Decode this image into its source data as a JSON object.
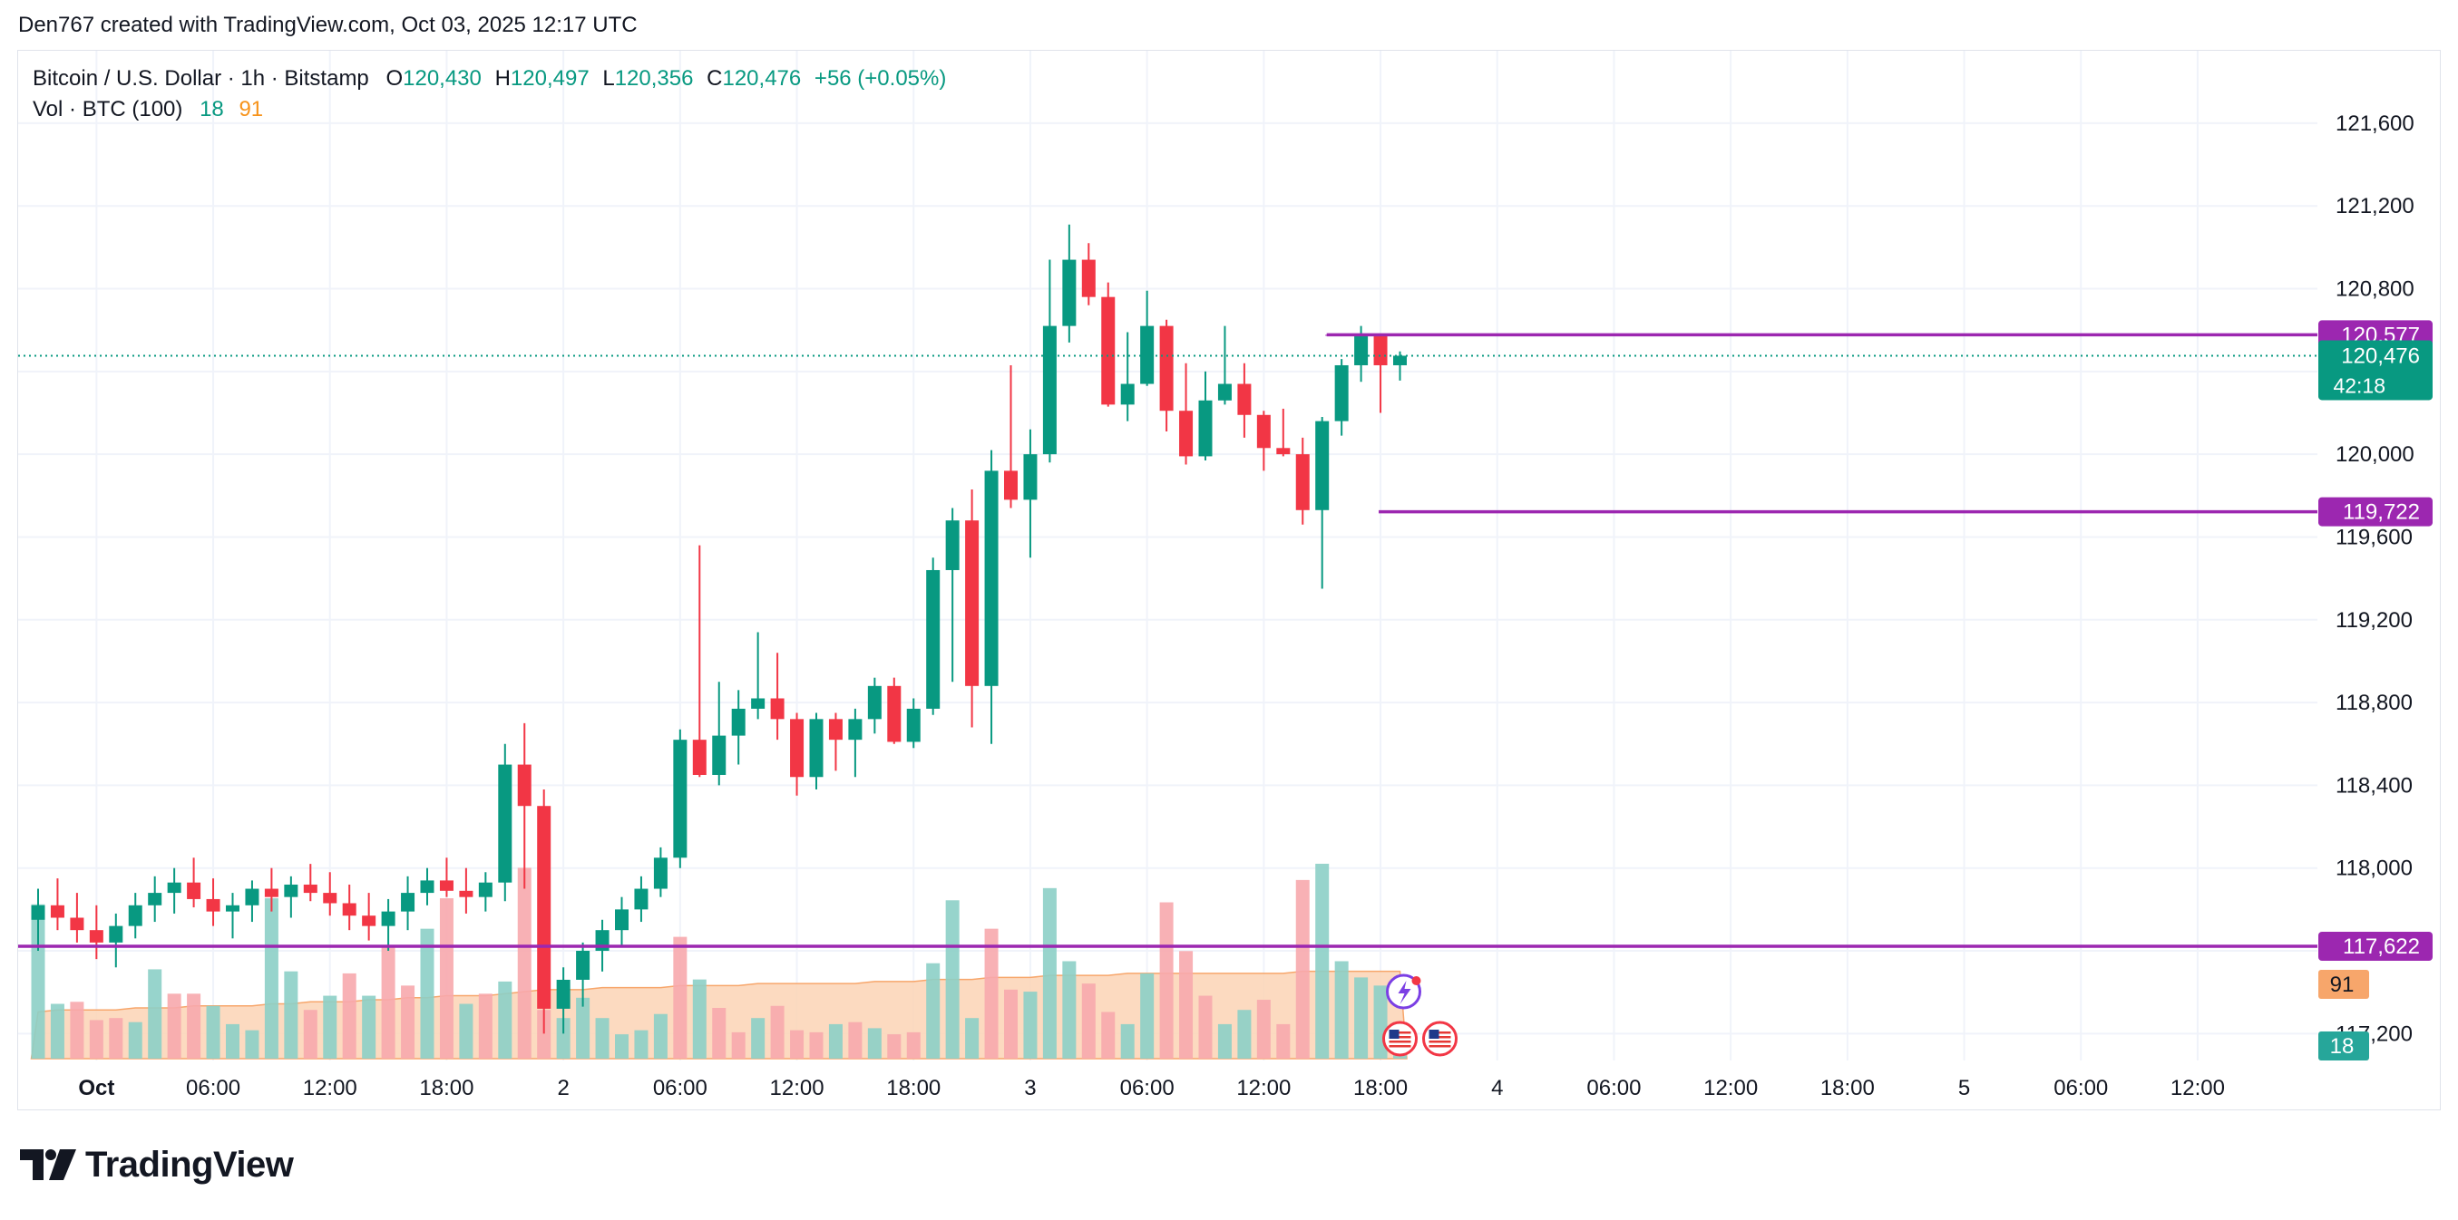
{
  "header": {
    "attribution": "Den767 created with TradingView.com, Oct 03, 2025 12:17 UTC"
  },
  "legend": {
    "symbol": "Bitcoin / U.S. Dollar · 1h · Bitstamp",
    "o_label": "O",
    "o_value": "120,430",
    "h_label": "H",
    "h_value": "120,497",
    "l_label": "L",
    "l_value": "120,356",
    "c_label": "C",
    "c_value": "120,476",
    "change": "+56 (+0.05%)",
    "vol_label": "Vol · BTC (100)",
    "vol_value_1": "18",
    "vol_value_2": "91"
  },
  "footer": {
    "brand": "TradingView"
  },
  "colors": {
    "up": "#089981",
    "down": "#f23645",
    "vol_up": "#8ccfc6",
    "vol_down": "#f7a8ad",
    "ma_fill": "#fbd3b5",
    "level": "#9c27b0",
    "grid": "#f0f3fa",
    "axis_text": "#131722"
  },
  "chart_data": {
    "type": "candlestick",
    "timeframe": "1h",
    "ylim": [
      117070,
      121950
    ],
    "y_ticks": [
      "121,600",
      "121,200",
      "120,800",
      "120,400",
      "120,000",
      "119,600",
      "119,200",
      "118,800",
      "118,400",
      "118,000",
      "117,600",
      "117,200"
    ],
    "x_ticks": [
      "Oct",
      "06:00",
      "12:00",
      "18:00",
      "2",
      "06:00",
      "12:00",
      "18:00",
      "3",
      "06:00",
      "12:00",
      "18:00",
      "4",
      "06:00",
      "12:00",
      "18:00",
      "5",
      "06:00",
      "12:00"
    ],
    "candles": [
      [
        117750,
        117900,
        117600,
        117820
      ],
      [
        117820,
        117950,
        117700,
        117760
      ],
      [
        117760,
        117880,
        117640,
        117700
      ],
      [
        117700,
        117820,
        117560,
        117640
      ],
      [
        117640,
        117780,
        117520,
        117720
      ],
      [
        117720,
        117880,
        117660,
        117820
      ],
      [
        117820,
        117960,
        117740,
        117880
      ],
      [
        117880,
        118000,
        117780,
        117930
      ],
      [
        117930,
        118050,
        117810,
        117850
      ],
      [
        117850,
        117950,
        117720,
        117790
      ],
      [
        117790,
        117880,
        117660,
        117820
      ],
      [
        117820,
        117940,
        117740,
        117900
      ],
      [
        117900,
        118000,
        117790,
        117860
      ],
      [
        117860,
        117960,
        117760,
        117920
      ],
      [
        117920,
        118020,
        117840,
        117880
      ],
      [
        117880,
        117980,
        117770,
        117830
      ],
      [
        117830,
        117920,
        117700,
        117770
      ],
      [
        117770,
        117880,
        117650,
        117720
      ],
      [
        117720,
        117850,
        117600,
        117790
      ],
      [
        117790,
        117960,
        117700,
        117880
      ],
      [
        117880,
        118000,
        117820,
        117940
      ],
      [
        117940,
        118050,
        117860,
        117890
      ],
      [
        117890,
        118000,
        117780,
        117860
      ],
      [
        117860,
        117980,
        117790,
        117930
      ],
      [
        117930,
        118600,
        117840,
        118500
      ],
      [
        118500,
        118700,
        117900,
        118300
      ],
      [
        118300,
        118380,
        117200,
        117320
      ],
      [
        117320,
        117520,
        117200,
        117460
      ],
      [
        117460,
        117640,
        117330,
        117600
      ],
      [
        117600,
        117750,
        117500,
        117700
      ],
      [
        117700,
        117860,
        117620,
        117800
      ],
      [
        117800,
        117960,
        117740,
        117900
      ],
      [
        117900,
        118100,
        117860,
        118050
      ],
      [
        118050,
        118670,
        118000,
        118620
      ],
      [
        118620,
        119560,
        118440,
        118450
      ],
      [
        118450,
        118900,
        118400,
        118640
      ],
      [
        118640,
        118860,
        118500,
        118770
      ],
      [
        118770,
        119140,
        118720,
        118820
      ],
      [
        118820,
        119040,
        118620,
        118720
      ],
      [
        118720,
        118750,
        118350,
        118440
      ],
      [
        118440,
        118750,
        118380,
        118720
      ],
      [
        118720,
        118750,
        118470,
        118620
      ],
      [
        118620,
        118770,
        118440,
        118720
      ],
      [
        118720,
        118920,
        118650,
        118880
      ],
      [
        118880,
        118920,
        118600,
        118610
      ],
      [
        118610,
        118820,
        118580,
        118770
      ],
      [
        118770,
        119500,
        118740,
        119440
      ],
      [
        119440,
        119740,
        118900,
        119680
      ],
      [
        119680,
        119830,
        118680,
        118880
      ],
      [
        118880,
        120020,
        118600,
        119920
      ],
      [
        119920,
        120430,
        119740,
        119780
      ],
      [
        119780,
        120120,
        119500,
        120000
      ],
      [
        120000,
        120940,
        119960,
        120620
      ],
      [
        120620,
        121110,
        120540,
        120940
      ],
      [
        120940,
        121020,
        120720,
        120760
      ],
      [
        120760,
        120830,
        120230,
        120240
      ],
      [
        120240,
        120590,
        120160,
        120340
      ],
      [
        120340,
        120790,
        120330,
        120620
      ],
      [
        120620,
        120650,
        120110,
        120210
      ],
      [
        120210,
        120440,
        119950,
        119990
      ],
      [
        119990,
        120400,
        119970,
        120260
      ],
      [
        120260,
        120620,
        120240,
        120340
      ],
      [
        120340,
        120440,
        120080,
        120190
      ],
      [
        120190,
        120210,
        119920,
        120030
      ],
      [
        120030,
        120220,
        119990,
        120000
      ],
      [
        120000,
        120080,
        119660,
        119730
      ],
      [
        119730,
        120180,
        119350,
        120160
      ],
      [
        120160,
        120460,
        120090,
        120430
      ],
      [
        120430,
        120620,
        120350,
        120570
      ],
      [
        120570,
        120580,
        120200,
        120430
      ],
      [
        120430,
        120497,
        120356,
        120476
      ]
    ],
    "volumes": [
      [
        76,
        1
      ],
      [
        27,
        1
      ],
      [
        28,
        0
      ],
      [
        19,
        0
      ],
      [
        20,
        0
      ],
      [
        18,
        1
      ],
      [
        44,
        1
      ],
      [
        32,
        0
      ],
      [
        32,
        0
      ],
      [
        26,
        1
      ],
      [
        17,
        1
      ],
      [
        14,
        1
      ],
      [
        79,
        1
      ],
      [
        43,
        1
      ],
      [
        24,
        0
      ],
      [
        31,
        1
      ],
      [
        42,
        0
      ],
      [
        31,
        1
      ],
      [
        56,
        0
      ],
      [
        36,
        0
      ],
      [
        64,
        1
      ],
      [
        79,
        0
      ],
      [
        27,
        1
      ],
      [
        32,
        0
      ],
      [
        38,
        1
      ],
      [
        94,
        0
      ],
      [
        24,
        0
      ],
      [
        20,
        1
      ],
      [
        30,
        1
      ],
      [
        20,
        1
      ],
      [
        12,
        1
      ],
      [
        14,
        1
      ],
      [
        22,
        1
      ],
      [
        60,
        0
      ],
      [
        39,
        1
      ],
      [
        25,
        0
      ],
      [
        13,
        0
      ],
      [
        20,
        1
      ],
      [
        26,
        0
      ],
      [
        14,
        0
      ],
      [
        13,
        0
      ],
      [
        17,
        1
      ],
      [
        18,
        0
      ],
      [
        15,
        1
      ],
      [
        12,
        0
      ],
      [
        13,
        0
      ],
      [
        47,
        1
      ],
      [
        78,
        1
      ],
      [
        20,
        1
      ],
      [
        64,
        0
      ],
      [
        34,
        0
      ],
      [
        33,
        1
      ],
      [
        84,
        1
      ],
      [
        48,
        1
      ],
      [
        37,
        0
      ],
      [
        23,
        0
      ],
      [
        17,
        1
      ],
      [
        42,
        1
      ],
      [
        77,
        0
      ],
      [
        53,
        0
      ],
      [
        31,
        0
      ],
      [
        17,
        1
      ],
      [
        24,
        1
      ],
      [
        29,
        0
      ],
      [
        17,
        0
      ],
      [
        88,
        0
      ],
      [
        96,
        1
      ],
      [
        48,
        1
      ],
      [
        40,
        1
      ],
      [
        36,
        1
      ],
      [
        18,
        1
      ]
    ],
    "ma_fill_values": [
      23,
      24,
      24,
      24,
      24,
      25,
      25,
      25,
      26,
      26,
      26,
      26,
      27,
      27,
      28,
      28,
      28,
      29,
      29,
      30,
      30,
      31,
      31,
      31,
      32,
      33,
      34,
      34,
      34,
      35,
      35,
      35,
      35,
      36,
      36,
      36,
      36,
      37,
      37,
      37,
      37,
      37,
      37,
      38,
      38,
      38,
      39,
      39,
      39,
      40,
      40,
      40,
      41,
      41,
      41,
      41,
      42,
      42,
      42,
      42,
      42,
      42,
      42,
      42,
      42,
      43,
      43,
      43,
      43,
      43,
      43
    ],
    "vol_ylim": [
      0,
      100
    ],
    "levels": [
      {
        "value": 120577,
        "label": "120,577"
      },
      {
        "value": 119722,
        "label": "119,722"
      },
      {
        "value": 117622,
        "label": "117,622"
      }
    ],
    "last_price": {
      "value": 120476,
      "label": "120,476",
      "countdown": "42:18"
    },
    "vol_badges": [
      {
        "label": "91"
      },
      {
        "label": "18"
      }
    ]
  }
}
